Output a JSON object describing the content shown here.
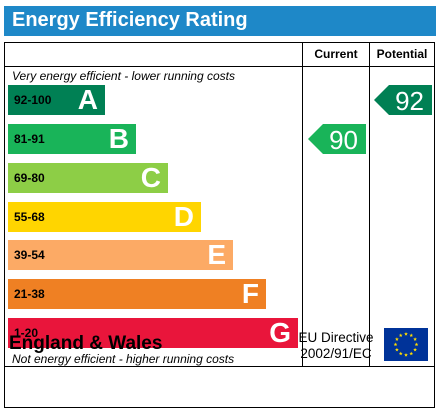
{
  "title": "Energy Efficiency Rating",
  "columns": {
    "current": "Current",
    "potential": "Potential"
  },
  "top_note": "Very energy efficient - lower running costs",
  "bottom_note": "Not energy efficient - higher running costs",
  "bands": [
    {
      "range": "92-100",
      "letter": "A",
      "color": "#008054",
      "range_color": "#000000"
    },
    {
      "range": "81-91",
      "letter": "B",
      "color": "#19b459",
      "range_color": "#000000"
    },
    {
      "range": "69-80",
      "letter": "C",
      "color": "#8dce46",
      "range_color": "#000000"
    },
    {
      "range": "55-68",
      "letter": "D",
      "color": "#ffd500",
      "range_color": "#000000"
    },
    {
      "range": "39-54",
      "letter": "E",
      "color": "#fcaa65",
      "range_color": "#000000"
    },
    {
      "range": "21-38",
      "letter": "F",
      "color": "#ef8023",
      "range_color": "#000000"
    },
    {
      "range": "1-20",
      "letter": "G",
      "color": "#e9153b",
      "range_color": "#000000"
    }
  ],
  "current_rating": {
    "value": "90",
    "band": "B",
    "color": "#19b459"
  },
  "potential_rating": {
    "value": "92",
    "band": "A",
    "color": "#008054"
  },
  "footer": {
    "country": "England & Wales",
    "directive_line1": "EU Directive",
    "directive_line2": "2002/91/EC"
  },
  "colors": {
    "title_bar": "#1e88c8",
    "eu_flag_blue": "#003399",
    "eu_flag_stars": "#ffdd00"
  }
}
